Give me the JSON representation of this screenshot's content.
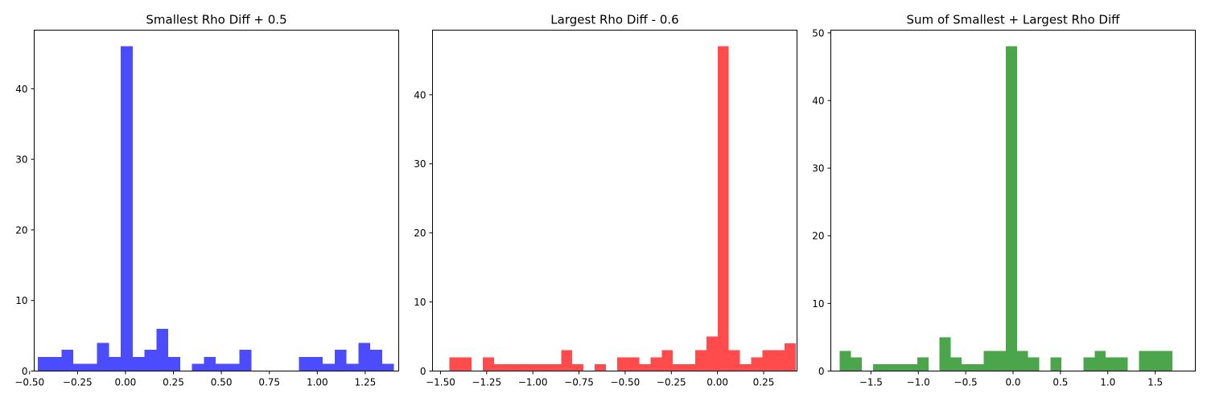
{
  "chart_data": [
    {
      "type": "bar",
      "title": "Smallest Rho Diff + 0.5",
      "color": "#4b4bff",
      "xlim": [
        -0.4757,
        1.4245
      ],
      "ylim": [
        0,
        48.3
      ],
      "xticks": [
        -0.5,
        -0.25,
        0.0,
        0.25,
        0.5,
        0.75,
        1.0,
        1.25
      ],
      "xtick_labels": [
        "−0.50",
        "−0.25",
        "0.00",
        "0.25",
        "0.50",
        "0.75",
        "1.00",
        "1.25"
      ],
      "yticks": [
        0,
        10,
        20,
        30,
        40
      ],
      "ytick_labels": [
        "0",
        "10",
        "20",
        "30",
        "40"
      ],
      "bin_start": -0.4575,
      "bin_width": 0.0619,
      "counts": [
        2,
        2,
        3,
        1,
        1,
        4,
        2,
        46,
        2,
        3,
        6,
        2,
        0,
        1,
        2,
        1,
        1,
        3,
        0,
        0,
        0,
        0,
        2,
        2,
        1,
        3,
        1,
        4,
        3,
        1
      ]
    },
    {
      "type": "bar",
      "title": "Largest Rho Diff - 0.6",
      "color": "#ff4b4b",
      "xlim": [
        -1.5434,
        0.4307
      ],
      "ylim": [
        0,
        49.35
      ],
      "xticks": [
        -1.5,
        -1.25,
        -1.0,
        -0.75,
        -0.5,
        -0.25,
        0.0,
        0.25
      ],
      "xtick_labels": [
        "−1.50",
        "−1.25",
        "−1.00",
        "−0.75",
        "−0.50",
        "−0.25",
        "0.00",
        "0.25"
      ],
      "yticks": [
        0,
        10,
        20,
        30,
        40
      ],
      "yticks_labels_note": "",
      "ytick_labels": [
        "0",
        "10",
        "20",
        "30",
        "40"
      ],
      "bin_start": -1.4526,
      "bin_width": 0.06055,
      "counts": [
        2,
        2,
        0,
        2,
        1,
        1,
        1,
        1,
        1,
        1,
        3,
        1,
        0,
        1,
        0,
        2,
        2,
        1,
        2,
        3,
        1,
        1,
        3,
        5,
        47,
        3,
        1,
        2,
        3,
        3,
        4
      ]
    },
    {
      "type": "bar",
      "title": "Sum of Smallest + Largest Rho Diff",
      "color": "#4ba64b",
      "xlim": [
        -1.9233,
        1.9233
      ],
      "ylim": [
        0,
        50.4
      ],
      "xticks": [
        -1.5,
        -1.0,
        -0.5,
        0.0,
        0.5,
        1.0,
        1.5
      ],
      "xtick_labels": [
        "−1.5",
        "−1.0",
        "−0.5",
        "0.0",
        "0.5",
        "1.0",
        "1.5"
      ],
      "yticks": [
        0,
        10,
        20,
        30,
        40,
        50
      ],
      "ytick_labels": [
        "0",
        "10",
        "20",
        "30",
        "40",
        "50"
      ],
      "bin_start": -1.8293,
      "bin_width": 0.11696,
      "counts": [
        3,
        2,
        0,
        1,
        1,
        1,
        1,
        2,
        0,
        5,
        2,
        1,
        1,
        3,
        3,
        48,
        3,
        2,
        0,
        2,
        0,
        0,
        2,
        3,
        2,
        2,
        0,
        3,
        3,
        3
      ]
    }
  ]
}
